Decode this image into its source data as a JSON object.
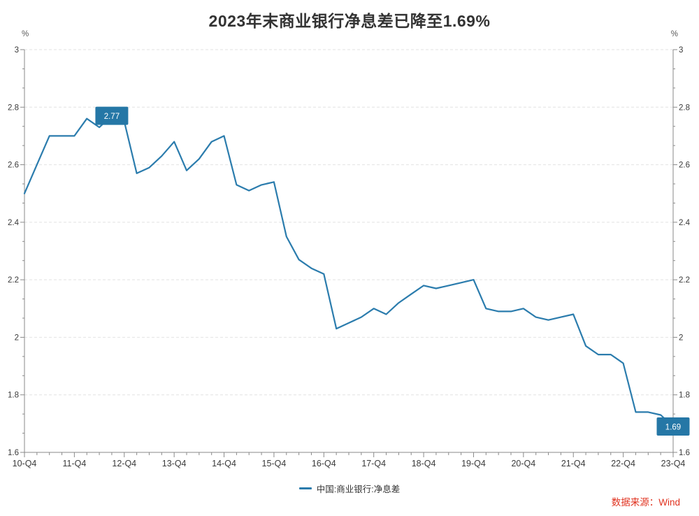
{
  "title": "2023年末商业银行净息差已降至1.69%",
  "axes": {
    "unit_left": "%",
    "unit_right": "%"
  },
  "legend": {
    "label": "中国:商业银行:净息差"
  },
  "source": "数据来源：Wind",
  "colors": {
    "line": "#2b7cad",
    "annotation_box": "#2577a6",
    "annotation_text": "#ffffff",
    "axis": "#8a8a8a",
    "grid": "#e2e2e2",
    "tick_label": "#3a3a3a",
    "title": "#333333",
    "source_red": "#e0321f"
  },
  "chart_data": {
    "type": "line",
    "title": "2023年末商业银行净息差已降至1.69%",
    "series_name": "中国:商业银行:净息差",
    "x": [
      "10-Q4",
      "11-Q1",
      "11-Q2",
      "11-Q3",
      "11-Q4",
      "12-Q1",
      "12-Q2",
      "12-Q3",
      "12-Q4",
      "13-Q1",
      "13-Q2",
      "13-Q3",
      "13-Q4",
      "14-Q1",
      "14-Q2",
      "14-Q3",
      "14-Q4",
      "15-Q1",
      "15-Q2",
      "15-Q3",
      "15-Q4",
      "16-Q1",
      "16-Q2",
      "16-Q3",
      "16-Q4",
      "17-Q1",
      "17-Q2",
      "17-Q3",
      "17-Q4",
      "18-Q1",
      "18-Q2",
      "18-Q3",
      "18-Q4",
      "19-Q1",
      "19-Q2",
      "19-Q3",
      "19-Q4",
      "20-Q1",
      "20-Q2",
      "20-Q3",
      "20-Q4",
      "21-Q1",
      "21-Q2",
      "21-Q3",
      "21-Q4",
      "22-Q1",
      "22-Q2",
      "22-Q3",
      "22-Q4",
      "23-Q1",
      "23-Q2",
      "23-Q3",
      "23-Q4"
    ],
    "values": [
      2.5,
      2.6,
      2.7,
      2.7,
      2.7,
      2.76,
      2.73,
      2.77,
      2.75,
      2.57,
      2.59,
      2.63,
      2.68,
      2.58,
      2.62,
      2.68,
      2.7,
      2.53,
      2.51,
      2.53,
      2.54,
      2.35,
      2.27,
      2.24,
      2.22,
      2.03,
      2.05,
      2.07,
      2.1,
      2.08,
      2.12,
      2.15,
      2.18,
      2.17,
      2.18,
      2.19,
      2.2,
      2.1,
      2.09,
      2.09,
      2.1,
      2.07,
      2.06,
      2.07,
      2.08,
      1.97,
      1.94,
      1.94,
      1.91,
      1.74,
      1.74,
      1.73,
      1.69
    ],
    "x_major_tick_labels": [
      "10-Q4",
      "11-Q4",
      "12-Q4",
      "13-Q4",
      "14-Q4",
      "15-Q4",
      "16-Q4",
      "17-Q4",
      "18-Q4",
      "19-Q4",
      "20-Q4",
      "21-Q4",
      "22-Q4",
      "23-Q4"
    ],
    "y_ticks": [
      1.6,
      1.8,
      2.0,
      2.2,
      2.4,
      2.6,
      2.8,
      3.0
    ],
    "ylim": [
      1.6,
      3.0
    ],
    "unit": "%",
    "grid": "horizontal-dashed",
    "legend_position": "bottom-center",
    "annotations": [
      {
        "x": "12-Q3",
        "value": 2.77,
        "label": "2.77"
      },
      {
        "x": "23-Q4",
        "value": 1.69,
        "label": "1.69"
      }
    ]
  }
}
